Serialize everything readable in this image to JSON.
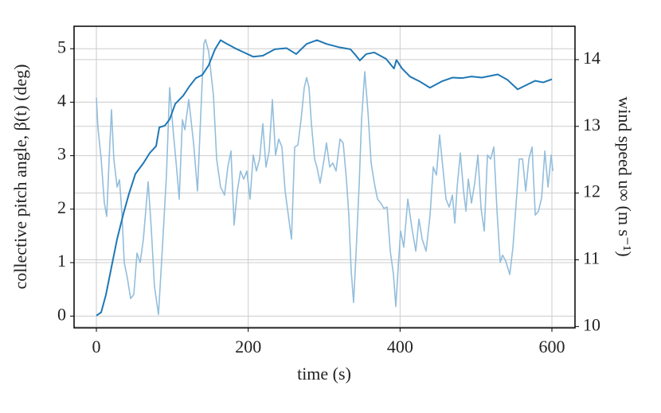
{
  "chart_data": {
    "type": "line",
    "xlabel": "time (s)",
    "ylabel": "collective pitch angle, β(t) (deg)",
    "y2label": "wind speed u∞ (m s⁻¹)",
    "xlim": [
      -29.4,
      630.4
    ],
    "xticks": [
      0,
      200,
      400,
      600
    ],
    "ylim": [
      -0.22,
      5.42
    ],
    "yticks": [
      0,
      1,
      2,
      3,
      4,
      5
    ],
    "y2lim": [
      9.98,
      14.5
    ],
    "y2ticks": [
      10,
      11,
      12,
      13,
      14
    ],
    "grid": true,
    "series": [
      {
        "name": "wind speed",
        "color": "#93bedc",
        "axis": "y2",
        "x": [
          0,
          2,
          6.3,
          10.5,
          13.6,
          16.8,
          19.9,
          23,
          27.3,
          30.4,
          33.6,
          36.7,
          40.9,
          45.1,
          49.3,
          53.5,
          57.7,
          61.9,
          68.2,
          72.3,
          76.5,
          81.8,
          87,
          92.3,
          96.5,
          100.7,
          106,
          109.1,
          113.3,
          116.5,
          121.7,
          128,
          133.2,
          137.4,
          141.6,
          143.7,
          147.9,
          154.2,
          158.4,
          163.6,
          168.8,
          173.1,
          177.3,
          181.4,
          185.6,
          189.8,
          194,
          198.2,
          202.4,
          206.6,
          210.8,
          215,
          219.2,
          223.4,
          227.6,
          231.8,
          236,
          240.2,
          244.4,
          248.6,
          252.8,
          257,
          261.2,
          265.4,
          269.6,
          273.8,
          276.9,
          280.1,
          283.2,
          287.4,
          290.5,
          294.7,
          300,
          303.1,
          307.3,
          311.5,
          315.7,
          320.9,
          325.1,
          329.3,
          332.5,
          335.6,
          338.8,
          341.9,
          346.2,
          349.3,
          353.5,
          357.7,
          361.9,
          366.1,
          370.3,
          374.5,
          378.7,
          382.9,
          387.1,
          391.3,
          394.4,
          397.6,
          400.7,
          404.9,
          410.2,
          415.4,
          420.7,
          424.9,
          429.1,
          434.3,
          439.5,
          443.7,
          447.9,
          452.1,
          456.3,
          460.5,
          464.7,
          468.9,
          472.1,
          475.2,
          479.4,
          483.6,
          486.8,
          489.9,
          494.1,
          498.3,
          502.5,
          506.7,
          510.9,
          515.1,
          519.3,
          523.5,
          527.7,
          531.9,
          535,
          539.2,
          544.5,
          548.7,
          552.9,
          557.1,
          561.3,
          565.5,
          569.7,
          573.9,
          578.1,
          582.3,
          586.5,
          590.7,
          594.9,
          599.1,
          601.2
        ],
        "values": [
          13.43,
          12.99,
          12.51,
          11.85,
          11.65,
          12.51,
          13.25,
          12.51,
          12.09,
          12.2,
          11.7,
          10.96,
          10.72,
          10.42,
          10.48,
          11.1,
          10.96,
          11.31,
          12.17,
          11.47,
          10.6,
          10.18,
          11.19,
          12.27,
          13.58,
          12.99,
          12.33,
          11.91,
          13.1,
          12.95,
          13.4,
          12.75,
          12.03,
          13.16,
          14.24,
          14.3,
          14.12,
          13.46,
          12.51,
          12.09,
          11.97,
          12.39,
          12.63,
          11.52,
          12.03,
          12.33,
          12.21,
          12.33,
          11.91,
          12.57,
          12.33,
          12.51,
          13.04,
          12.39,
          12.63,
          13.4,
          12.57,
          12.81,
          12.69,
          12.03,
          11.67,
          11.31,
          12.69,
          12.72,
          13.1,
          13.58,
          13.73,
          13.58,
          13.04,
          12.51,
          12.39,
          12.15,
          12.51,
          12.75,
          12.39,
          12.45,
          12.33,
          12.81,
          12.75,
          12.21,
          11.67,
          10.84,
          10.36,
          11.07,
          12.15,
          13.1,
          13.82,
          13.22,
          12.45,
          12.15,
          11.91,
          11.85,
          11.77,
          11.79,
          11.13,
          10.78,
          10.3,
          10.9,
          11.43,
          11.19,
          11.91,
          11.49,
          11.13,
          11.61,
          11.31,
          11.13,
          11.67,
          12.39,
          12.27,
          12.87,
          12.39,
          11.91,
          11.79,
          11.97,
          11.55,
          12.09,
          12.6,
          12.03,
          11.73,
          12.21,
          11.85,
          12.15,
          12.57,
          11.77,
          11.43,
          12.57,
          12.51,
          12.69,
          11.73,
          10.96,
          11.07,
          10.98,
          10.78,
          11.19,
          11.85,
          12.51,
          12.51,
          12.03,
          12.51,
          12.69,
          11.67,
          11.73,
          11.93,
          12.63,
          12.09,
          12.57,
          12.33
        ]
      },
      {
        "name": "pitch angle",
        "color": "#1f77b4",
        "axis": "y",
        "x": [
          0,
          6.3,
          12.6,
          19.9,
          27.3,
          35.7,
          43,
          51.4,
          61.9,
          70.3,
          78.7,
          82.9,
          90,
          96.5,
          103.9,
          114.3,
          122.7,
          131,
          139.5,
          147.9,
          156.3,
          163.6,
          172,
          182.5,
          193,
          206.6,
          219.2,
          235,
          250.6,
          263.2,
          276.9,
          290.5,
          303,
          318.9,
          334.6,
          342,
          347,
          355.4,
          365.9,
          381.6,
          392,
          395.2,
          402.6,
          413,
          425.6,
          439.3,
          455,
          468.9,
          481.5,
          494,
          507.7,
          528.7,
          541.3,
          554.9,
          570.6,
          577.9,
          588.5,
          600
        ],
        "values": [
          0.01,
          0.07,
          0.4,
          0.92,
          1.44,
          1.92,
          2.29,
          2.66,
          2.86,
          3.05,
          3.18,
          3.53,
          3.56,
          3.68,
          3.97,
          4.12,
          4.3,
          4.45,
          4.51,
          4.69,
          4.99,
          5.16,
          5.09,
          5.01,
          4.94,
          4.85,
          4.87,
          4.99,
          5.01,
          4.9,
          5.09,
          5.16,
          5.09,
          5.03,
          4.99,
          4.87,
          4.78,
          4.9,
          4.93,
          4.81,
          4.63,
          4.79,
          4.63,
          4.48,
          4.39,
          4.27,
          4.39,
          4.46,
          4.45,
          4.48,
          4.46,
          4.52,
          4.42,
          4.24,
          4.35,
          4.4,
          4.37,
          4.43
        ]
      }
    ]
  }
}
